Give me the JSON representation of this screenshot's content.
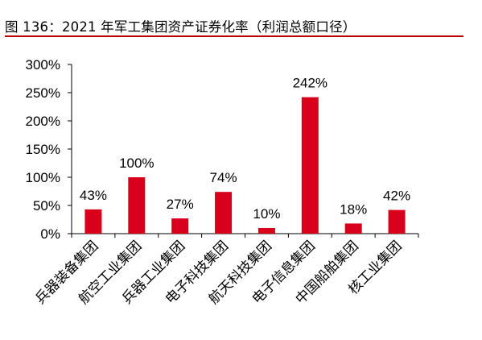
{
  "header": {
    "title": "图 136：2021 年军工集团资产证券化率（利润总额口径）"
  },
  "colors": {
    "accent": "#c00000",
    "bar": "#d9001b",
    "axis": "#000000"
  },
  "chart_data": {
    "type": "bar",
    "title": "图 136：2021 年军工集团资产证券化率（利润总额口径）",
    "xlabel": "",
    "ylabel": "",
    "ylim": [
      0,
      300
    ],
    "yticks": [
      0,
      50,
      100,
      150,
      200,
      250,
      300
    ],
    "ytick_labels": [
      "0%",
      "50%",
      "100%",
      "150%",
      "200%",
      "250%",
      "300%"
    ],
    "grid": false,
    "categories": [
      "兵器装备集团",
      "航空工业集团",
      "兵器工业集团",
      "电子科技集团",
      "航天科技集团",
      "电子信息集团",
      "中国船舶集团",
      "核工业集团"
    ],
    "values": [
      43,
      100,
      27,
      74,
      10,
      242,
      18,
      42
    ],
    "data_labels": [
      "43%",
      "100%",
      "27%",
      "74%",
      "10%",
      "242%",
      "18%",
      "42%"
    ]
  }
}
